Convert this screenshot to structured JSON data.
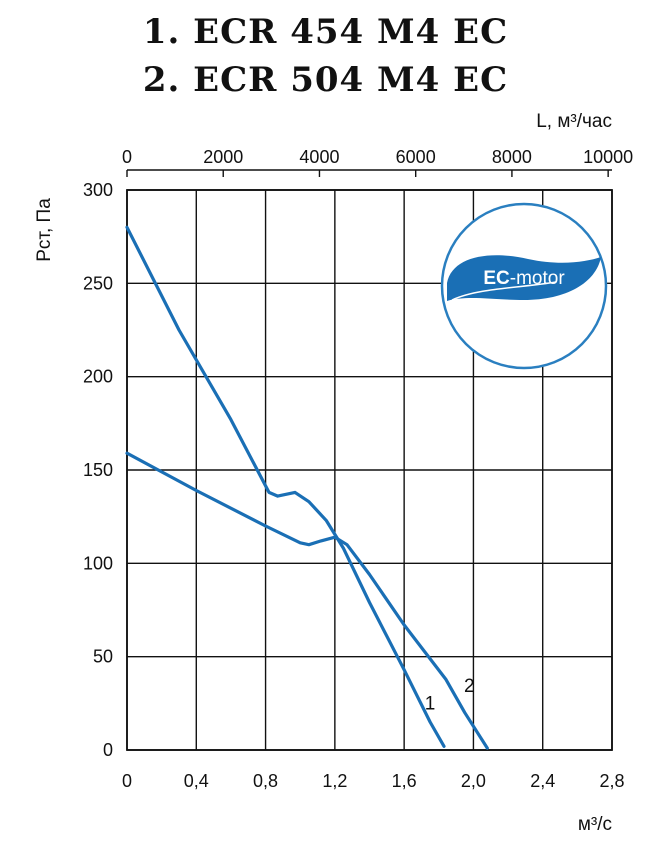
{
  "title": {
    "line1": "1. ECR 454 M4 EC",
    "line2": "2. ECR 504 M4 EC"
  },
  "logo": {
    "text_bold": "EC",
    "text_rest": "-motor",
    "color": "#1a6fb5"
  },
  "chart_data": {
    "type": "line",
    "xlabel": "м³/с",
    "x2label": "L, м³/час",
    "ylabel": "Pст, Па",
    "xlim": [
      0,
      2.8
    ],
    "ylim": [
      0,
      300
    ],
    "x2lim": [
      0,
      10080
    ],
    "x_ticks": [
      "0",
      "0,4",
      "0,8",
      "1,2",
      "1,6",
      "2,0",
      "2,4",
      "2,8"
    ],
    "x_tick_values": [
      0,
      0.4,
      0.8,
      1.2,
      1.6,
      2.0,
      2.4,
      2.8
    ],
    "x2_ticks": [
      "0",
      "2000",
      "4000",
      "6000",
      "8000",
      "10000"
    ],
    "x2_tick_values": [
      0,
      2000,
      4000,
      6000,
      8000,
      10000
    ],
    "y_ticks": [
      "0",
      "50",
      "100",
      "150",
      "200",
      "250",
      "300"
    ],
    "y_tick_values": [
      0,
      50,
      100,
      150,
      200,
      250,
      300
    ],
    "grid": true,
    "series_color": "#1a6fb5",
    "series": [
      {
        "name": "1",
        "points": [
          [
            0,
            280
          ],
          [
            0.3,
            225
          ],
          [
            0.6,
            177
          ],
          [
            0.82,
            138
          ],
          [
            0.87,
            136
          ],
          [
            0.97,
            138
          ],
          [
            1.05,
            133
          ],
          [
            1.15,
            123
          ],
          [
            1.25,
            108
          ],
          [
            1.4,
            79
          ],
          [
            1.6,
            43
          ],
          [
            1.75,
            15
          ],
          [
            1.83,
            2
          ]
        ]
      },
      {
        "name": "2",
        "points": [
          [
            0,
            159
          ],
          [
            0.4,
            139
          ],
          [
            0.8,
            120
          ],
          [
            1.0,
            111
          ],
          [
            1.05,
            110
          ],
          [
            1.12,
            112
          ],
          [
            1.2,
            114
          ],
          [
            1.27,
            110
          ],
          [
            1.4,
            94
          ],
          [
            1.6,
            67
          ],
          [
            1.84,
            38
          ],
          [
            1.95,
            20
          ],
          [
            2.08,
            1
          ]
        ]
      }
    ]
  }
}
